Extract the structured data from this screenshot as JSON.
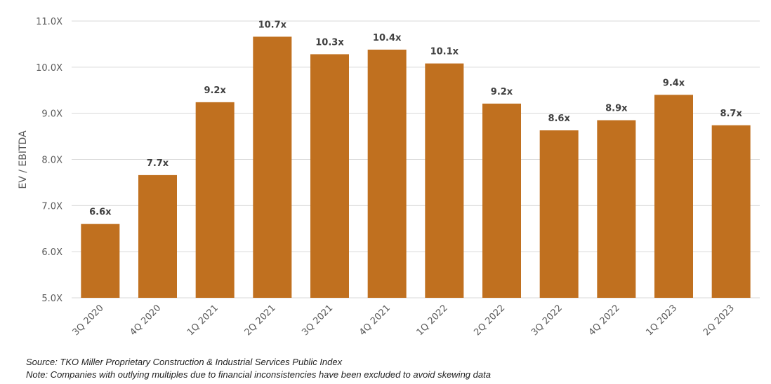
{
  "chart_data": {
    "type": "bar",
    "title": "",
    "xlabel": "",
    "ylabel": "EV / EBITDA",
    "ylim": [
      5.0,
      11.0
    ],
    "yticks": [
      "5.0X",
      "6.0X",
      "7.0X",
      "8.0X",
      "9.0X",
      "10.0X",
      "11.0X"
    ],
    "ytick_values": [
      5,
      6,
      7,
      8,
      9,
      10,
      11
    ],
    "grid": true,
    "categories": [
      "3Q 2020",
      "4Q 2020",
      "1Q 2021",
      "2Q 2021",
      "3Q 2021",
      "4Q 2021",
      "1Q 2022",
      "2Q 2022",
      "3Q 2022",
      "4Q 2022",
      "1Q 2023",
      "2Q 2023"
    ],
    "values": [
      6.6,
      7.66,
      9.24,
      10.66,
      10.28,
      10.38,
      10.08,
      9.21,
      8.63,
      8.85,
      9.4,
      8.74
    ],
    "data_labels": [
      "6.6x",
      "7.7x",
      "9.2x",
      "10.7x",
      "10.3x",
      "10.4x",
      "10.1x",
      "9.2x",
      "8.6x",
      "8.9x",
      "9.4x",
      "8.7x"
    ],
    "bar_color": "#C0701F",
    "grid_color": "#D9D9D9"
  },
  "footer": {
    "source": "Source: TKO Miller Proprietary Construction & Industrial Services Public Index",
    "note": "Note: Companies with outlying multiples due to financial inconsistencies have been excluded to avoid skewing data"
  }
}
